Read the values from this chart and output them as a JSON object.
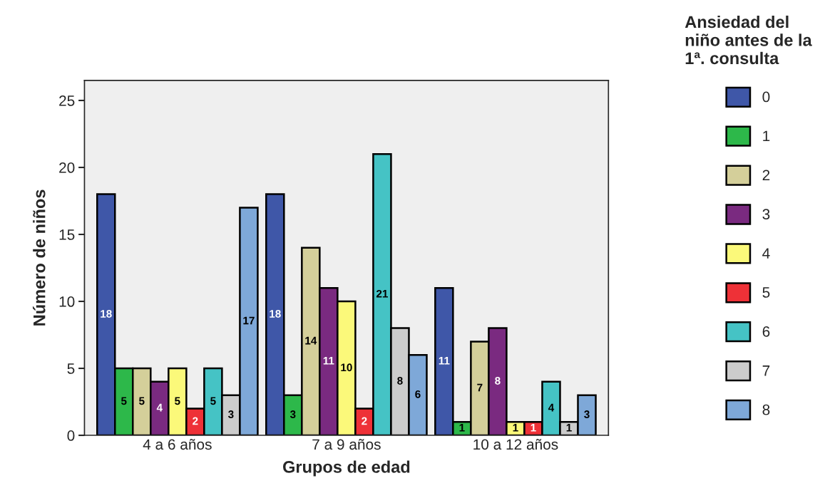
{
  "chart_data": {
    "type": "bar",
    "xlabel": "Grupos de edad",
    "ylabel": "Número de niños",
    "legend_title": "Ansiedad del\nniño antes de la\n1ª. consulta",
    "categories": [
      "4 a 6 años",
      "7 a 9 años",
      "10 a 12 años"
    ],
    "series": [
      {
        "name": "0",
        "color": "#3f57a8",
        "values": [
          18,
          18,
          11
        ]
      },
      {
        "name": "1",
        "color": "#2db84a",
        "values": [
          5,
          3,
          1
        ]
      },
      {
        "name": "2",
        "color": "#d4cf9a",
        "values": [
          5,
          14,
          7
        ]
      },
      {
        "name": "3",
        "color": "#7a2a80",
        "values": [
          4,
          11,
          8
        ]
      },
      {
        "name": "4",
        "color": "#fbf97a",
        "values": [
          5,
          10,
          1
        ]
      },
      {
        "name": "5",
        "color": "#ee3137",
        "values": [
          2,
          2,
          1
        ]
      },
      {
        "name": "6",
        "color": "#45c3c5",
        "values": [
          5,
          21,
          4
        ]
      },
      {
        "name": "7",
        "color": "#cccccc",
        "values": [
          3,
          8,
          1
        ]
      },
      {
        "name": "8",
        "color": "#7ea8d8",
        "values": [
          17,
          6,
          3
        ]
      }
    ],
    "ylim": [
      0,
      26.5
    ],
    "yticks": [
      0,
      5,
      10,
      15,
      20,
      25
    ],
    "data_labels": true,
    "legend": "right",
    "grid": false
  }
}
